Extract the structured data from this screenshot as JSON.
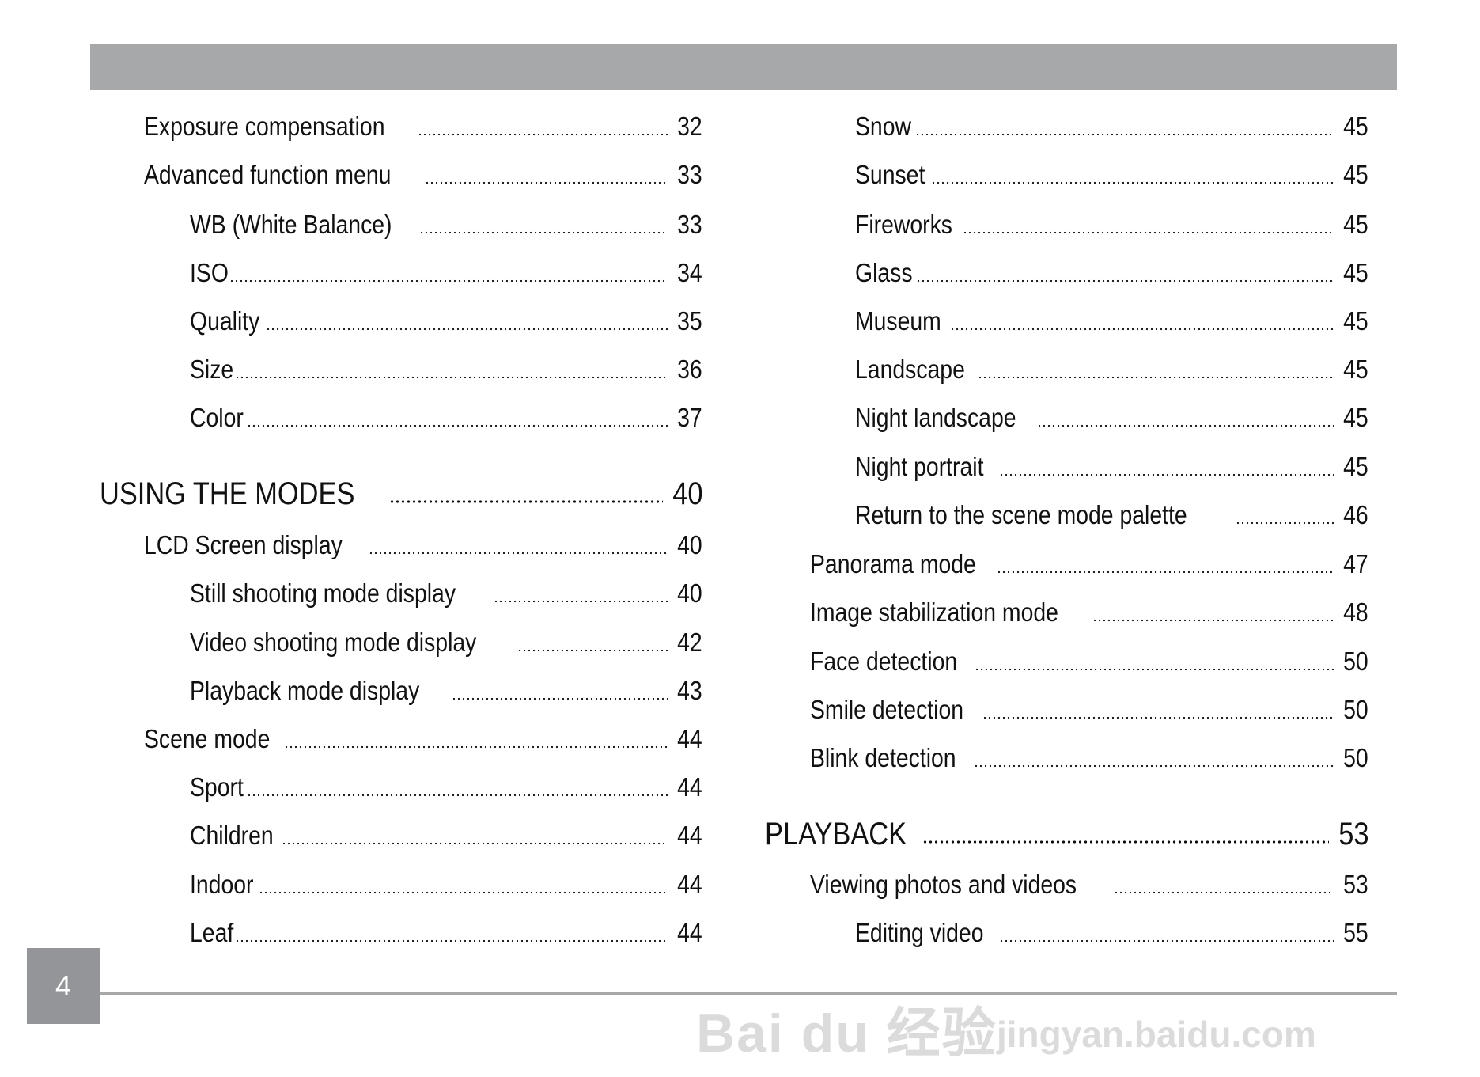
{
  "left_column": [
    {
      "level": 1,
      "label": "Exposure compensation",
      "page": "32"
    },
    {
      "level": 1,
      "label": "Advanced function menu",
      "page": "33"
    },
    {
      "level": 2,
      "label": "WB (White Balance)",
      "page": "33"
    },
    {
      "level": 2,
      "label": "ISO",
      "page": "34"
    },
    {
      "level": 2,
      "label": "Quality",
      "page": "35"
    },
    {
      "level": 2,
      "label": "Size",
      "page": "36"
    },
    {
      "level": 2,
      "label": "Color",
      "page": "37"
    },
    {
      "level": 0,
      "label": "USING THE MODES",
      "page": "40"
    },
    {
      "level": 1,
      "label": "LCD Screen display",
      "page": "40"
    },
    {
      "level": 2,
      "label": "Still shooting mode display",
      "page": "40"
    },
    {
      "level": 2,
      "label": "Video shooting mode display",
      "page": "42"
    },
    {
      "level": 2,
      "label": "Playback mode display",
      "page": "43"
    },
    {
      "level": 1,
      "label": "Scene mode",
      "page": "44"
    },
    {
      "level": 2,
      "label": "Sport",
      "page": "44"
    },
    {
      "level": 2,
      "label": "Children",
      "page": "44"
    },
    {
      "level": 2,
      "label": "Indoor",
      "page": "44"
    },
    {
      "level": 2,
      "label": "Leaf",
      "page": "44"
    }
  ],
  "right_column": [
    {
      "level": 2,
      "label": "Snow",
      "page": "45"
    },
    {
      "level": 2,
      "label": "Sunset",
      "page": "45"
    },
    {
      "level": 2,
      "label": "Fireworks",
      "page": "45"
    },
    {
      "level": 2,
      "label": "Glass",
      "page": "45"
    },
    {
      "level": 2,
      "label": "Museum",
      "page": "45"
    },
    {
      "level": 2,
      "label": "Landscape",
      "page": "45"
    },
    {
      "level": 2,
      "label": "Night landscape",
      "page": "45"
    },
    {
      "level": 2,
      "label": "Night portrait",
      "page": "45"
    },
    {
      "level": 2,
      "label": "Return to the scene mode palette",
      "page": "46"
    },
    {
      "level": 1,
      "label": "Panorama mode",
      "page": "47"
    },
    {
      "level": 1,
      "label": "Image stabilization mode",
      "page": "48"
    },
    {
      "level": 1,
      "label": "Face detection",
      "page": "50"
    },
    {
      "level": 1,
      "label": "Smile detection",
      "page": "50"
    },
    {
      "level": 1,
      "label": "Blink detection",
      "page": "50"
    },
    {
      "level": 0,
      "label": "PLAYBACK",
      "page": "53"
    },
    {
      "level": 1,
      "label": "Viewing photos and videos",
      "page": "53"
    },
    {
      "level": 2,
      "label": "Editing video",
      "page": "55"
    }
  ],
  "page_number": "4",
  "watermark": {
    "logo": "Bai du 经验",
    "url": "jingyan.baidu.com"
  },
  "colors": {
    "bar": "#a7a8aa",
    "page_box": "#939598"
  }
}
